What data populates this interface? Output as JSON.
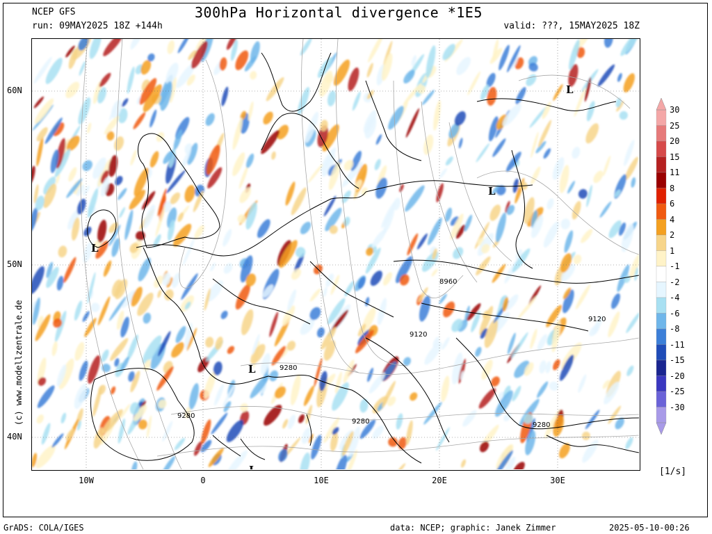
{
  "header": {
    "model": "NCEP GFS",
    "run": "run: 09MAY2025 18Z +144h",
    "title": "300hPa Horizontal divergence *1E5",
    "valid": "valid: ???, 15MAY2025 18Z"
  },
  "map": {
    "lat_labels": [
      "60N",
      "50N",
      "40N"
    ],
    "lon_labels": [
      "10W",
      "0",
      "10E",
      "20E",
      "30E"
    ],
    "low_markers": [
      "L",
      "L",
      "L",
      "L",
      "L"
    ],
    "contour_labels": [
      "8960",
      "9120",
      "9120",
      "9280",
      "9280",
      "9280",
      "9280"
    ],
    "credit": "(c) www.modellzentrale.de"
  },
  "colorbar": {
    "labels": [
      "30",
      "25",
      "20",
      "15",
      "11",
      "8",
      "6",
      "4",
      "2",
      "1",
      "-1",
      "-2",
      "-4",
      "-6",
      "-8",
      "-11",
      "-15",
      "-20",
      "-25",
      "-30"
    ],
    "colors": [
      "#f4a7a7",
      "#e67a7a",
      "#d64a4a",
      "#b52020",
      "#9a0000",
      "#e02000",
      "#f05a10",
      "#f4a020",
      "#f7d58a",
      "#fff3c8",
      "#ffffff",
      "#e6f6ff",
      "#a8e0f2",
      "#6fb6ea",
      "#3c7fd8",
      "#1f4cb8",
      "#1a2590",
      "#3a37c0",
      "#6a62d8",
      "#a89ae8"
    ],
    "units": "[1/s]"
  },
  "footer": {
    "left": "GrADS: COLA/IGES",
    "center": "data: NCEP; graphic: Janek Zimmer",
    "right": "2025-05-10-00:26"
  }
}
